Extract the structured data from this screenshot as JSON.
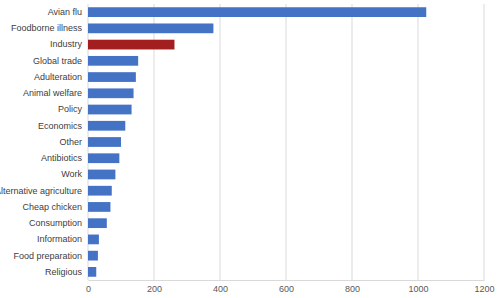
{
  "chart_data": {
    "type": "bar",
    "orientation": "horizontal",
    "categories": [
      "Avian flu",
      "Foodborne illness",
      "Industry",
      "Global trade",
      "Adulteration",
      "Animal welfare",
      "Policy",
      "Economics",
      "Other",
      "Antibiotics",
      "Work",
      "Alternative agriculture",
      "Cheap chicken",
      "Consumption",
      "Information",
      "Food preparation",
      "Religious"
    ],
    "values": [
      1025,
      380,
      262,
      152,
      145,
      138,
      132,
      113,
      100,
      95,
      83,
      72,
      68,
      57,
      33,
      30,
      25
    ],
    "colors": [
      "#4472c4",
      "#4472c4",
      "#a31f1f",
      "#4472c4",
      "#4472c4",
      "#4472c4",
      "#4472c4",
      "#4472c4",
      "#4472c4",
      "#4472c4",
      "#4472c4",
      "#4472c4",
      "#4472c4",
      "#4472c4",
      "#4472c4",
      "#4472c4",
      "#4472c4"
    ],
    "xlim": [
      0,
      1200
    ],
    "xticks": [
      0,
      200,
      400,
      600,
      800,
      1000,
      1200
    ],
    "grid": true
  }
}
